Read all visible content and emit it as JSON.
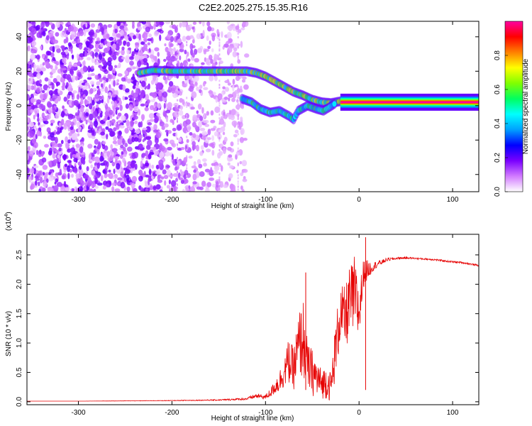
{
  "figure": {
    "title": "C2E2.2025.275.15.35.R16"
  },
  "chart_data": [
    {
      "type": "heatmap",
      "xlabel": "Height of straight line (km)",
      "ylabel": "Frequency (Hz)",
      "xlim": [
        -355,
        128
      ],
      "ylim": [
        -50,
        49
      ],
      "x_ticks": [
        -300,
        -200,
        -100,
        0,
        100
      ],
      "y_ticks": [
        -40,
        -20,
        0,
        20,
        40
      ],
      "colorbar": {
        "label": "Normalized spectral amplitude",
        "range": [
          0,
          1
        ],
        "ticks": [
          "0.0",
          "0.2",
          "0.4",
          "0.6",
          "0.8"
        ],
        "tick_values": [
          0.0,
          0.2,
          0.4,
          0.6,
          0.8
        ],
        "colors": [
          "#ffffff",
          "#d27bff",
          "#7a00ff",
          "#0000ff",
          "#00a0ff",
          "#00ffff",
          "#00ff60",
          "#80ff00",
          "#ffff00",
          "#ff8000",
          "#ff0000",
          "#ff00a0"
        ]
      },
      "features": [
        {
          "name": "noise region",
          "x_range": [
            -355,
            -120
          ],
          "y_range": [
            -50,
            49
          ],
          "amplitude": 0.08
        },
        {
          "name": "upper line",
          "points": [
            [
              -235,
              19
            ],
            [
              -220,
              20.5
            ],
            [
              -200,
              20
            ],
            [
              -180,
              20
            ],
            [
              -160,
              20
            ],
            [
              -140,
              20
            ],
            [
              -120,
              20
            ],
            [
              -110,
              19
            ],
            [
              -100,
              17
            ],
            [
              -90,
              14
            ],
            [
              -80,
              11
            ],
            [
              -70,
              8
            ],
            [
              -60,
              6
            ],
            [
              -50,
              3.5
            ],
            [
              -40,
              2
            ],
            [
              -30,
              1.5
            ],
            [
              -20,
              2.5
            ],
            [
              -10,
              2
            ],
            [
              0,
              2
            ],
            [
              20,
              2
            ],
            [
              60,
              2
            ],
            [
              128,
              2
            ]
          ],
          "amplitude": 0.6
        },
        {
          "name": "lower line",
          "points": [
            [
              -125,
              4
            ],
            [
              -115,
              2
            ],
            [
              -105,
              -2
            ],
            [
              -95,
              -4
            ],
            [
              -85,
              -3
            ],
            [
              -75,
              -6
            ],
            [
              -70,
              -8
            ],
            [
              -65,
              -3
            ],
            [
              -55,
              0
            ],
            [
              -45,
              -2
            ],
            [
              -38,
              -3
            ],
            [
              -32,
              -1
            ],
            [
              -25,
              1.5
            ]
          ],
          "amplitude": 0.5
        }
      ]
    },
    {
      "type": "line",
      "xlabel": "Height of straight line (km)",
      "ylabel": "SNR (10 * v/v)",
      "y_scale_label": "(x10",
      "y_scale_exponent": "4",
      "y_scale_close": ")",
      "xlim": [
        -355,
        128
      ],
      "ylim": [
        -0.05,
        2.85
      ],
      "x_ticks": [
        -300,
        -200,
        -100,
        0,
        100
      ],
      "y_ticks": [
        "0.0",
        "0.5",
        "1.0",
        "1.5",
        "2.0",
        "2.5"
      ],
      "y_tick_values": [
        0.0,
        0.5,
        1.0,
        1.5,
        2.0,
        2.5
      ],
      "series_color": "#e60000",
      "x": [
        -355,
        -300,
        -200,
        -150,
        -120,
        -110,
        -100,
        -95,
        -90,
        -85,
        -80,
        -75,
        -70,
        -65,
        -60,
        -55,
        -50,
        -45,
        -40,
        -35,
        -30,
        -25,
        -20,
        -15,
        -10,
        -5,
        0,
        5,
        10,
        15,
        20,
        25,
        30,
        40,
        50,
        60,
        70,
        80,
        90,
        100,
        110,
        120,
        128
      ],
      "y": [
        0.01,
        0.01,
        0.02,
        0.03,
        0.05,
        0.1,
        0.08,
        0.15,
        0.25,
        0.35,
        0.5,
        0.7,
        0.55,
        0.9,
        1.1,
        0.6,
        0.5,
        0.4,
        0.3,
        0.35,
        0.25,
        0.9,
        1.5,
        1.4,
        1.7,
        1.8,
        1.5,
        2.2,
        2.25,
        2.3,
        2.35,
        2.38,
        2.42,
        2.44,
        2.45,
        2.44,
        2.43,
        2.42,
        2.4,
        2.38,
        2.37,
        2.34,
        2.32
      ],
      "noise_amplitude": [
        0,
        0,
        0.005,
        0.01,
        0.02,
        0.04,
        0.04,
        0.08,
        0.12,
        0.2,
        0.25,
        0.4,
        0.35,
        0.6,
        0.7,
        0.4,
        0.4,
        0.35,
        0.25,
        0.3,
        0.25,
        0.5,
        0.5,
        0.55,
        0.6,
        0.7,
        0.5,
        0.25,
        0.15,
        0.08,
        0.05,
        0.04,
        0.03,
        0.02,
        0.015,
        0.015,
        0.015,
        0.015,
        0.015,
        0.015,
        0.015,
        0.015,
        0.015
      ],
      "annotations": [
        {
          "x": -57,
          "y": 2.2
        },
        {
          "x": 7,
          "y": 2.8
        }
      ]
    }
  ]
}
